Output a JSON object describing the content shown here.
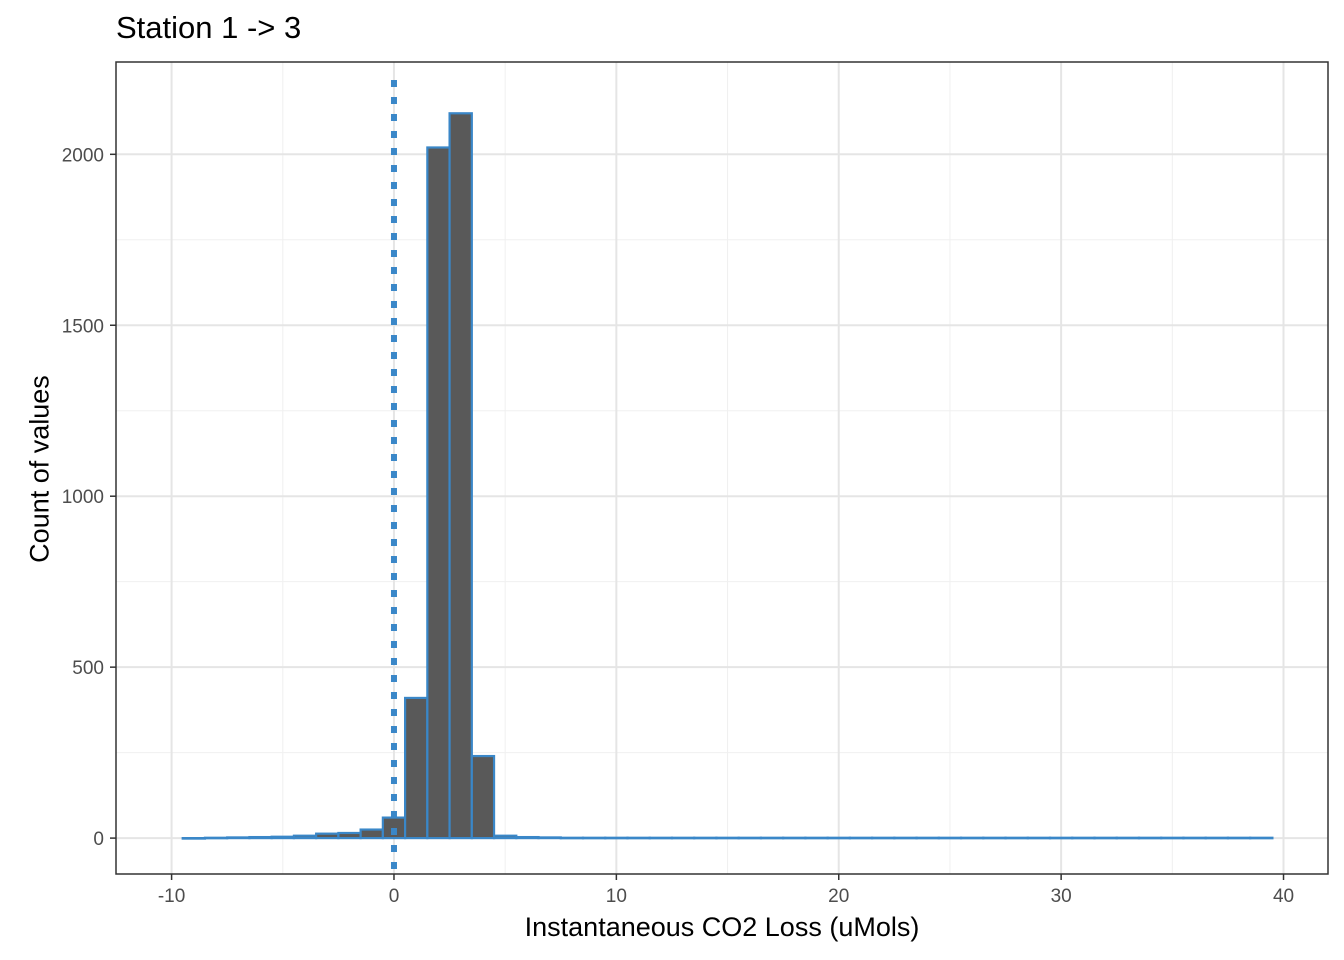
{
  "chart_data": {
    "type": "bar",
    "title": "Station 1 -> 3",
    "xlabel": "Instantaneous CO2 Loss (uMols)",
    "ylabel": "Count of values",
    "xlim": [
      -12.5,
      42
    ],
    "ylim": [
      -105,
      2270
    ],
    "x_ticks": [
      -10,
      0,
      10,
      20,
      30,
      40
    ],
    "x_tick_labels": [
      "-10",
      "0",
      "10",
      "20",
      "30",
      "40"
    ],
    "y_ticks": [
      0,
      500,
      1000,
      1500,
      2000
    ],
    "y_tick_labels": [
      "0",
      "500",
      "1000",
      "1500",
      "2000"
    ],
    "bin_width": 1,
    "bin_centers": [
      -9,
      -8,
      -7,
      -6,
      -5,
      -4,
      -3,
      -2,
      -1,
      0,
      1,
      2,
      3,
      4,
      5,
      6,
      7,
      8,
      9,
      10,
      11,
      12,
      13,
      14,
      15,
      16,
      17,
      18,
      19,
      20,
      21,
      22,
      23,
      24,
      25,
      26,
      27,
      28,
      29,
      30,
      31,
      32,
      33,
      34,
      35,
      36,
      37,
      38,
      39
    ],
    "values": [
      0,
      1,
      2,
      3,
      4,
      7,
      13,
      15,
      25,
      60,
      410,
      2020,
      2120,
      240,
      7,
      3,
      2,
      1,
      1,
      1,
      1,
      1,
      1,
      1,
      1,
      1,
      1,
      1,
      1,
      1,
      1,
      1,
      1,
      1,
      1,
      1,
      1,
      1,
      1,
      1,
      1,
      1,
      1,
      1,
      1,
      1,
      1,
      1,
      1
    ],
    "vline": {
      "x": 0,
      "style": "dotted",
      "color": "#3a87c8"
    },
    "bar_fill": "#595959",
    "bar_outline": "#3a87c8",
    "grid": true,
    "theme": "bw"
  }
}
